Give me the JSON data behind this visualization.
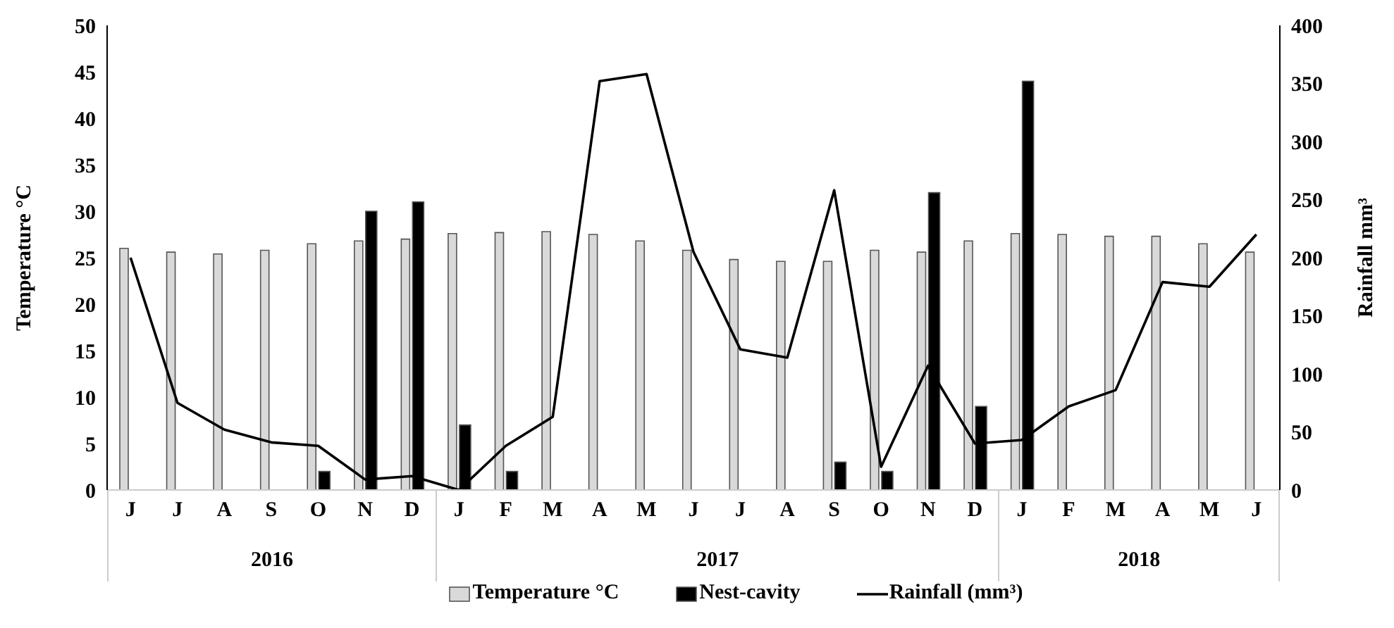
{
  "chart_data": {
    "type": "bar",
    "categories": [
      "J",
      "J",
      "A",
      "S",
      "O",
      "N",
      "D",
      "J",
      "F",
      "M",
      "A",
      "M",
      "J",
      "J",
      "A",
      "S",
      "O",
      "N",
      "D",
      "J",
      "F",
      "M",
      "A",
      "M",
      "J"
    ],
    "ylabel": "Temperature °C",
    "y2label": "Rainfall mm³",
    "ylim": [
      0,
      50
    ],
    "yticks": [
      0,
      5,
      10,
      15,
      20,
      25,
      30,
      35,
      40,
      45,
      50
    ],
    "y2lim": [
      0,
      400
    ],
    "y2ticks": [
      0,
      50,
      100,
      150,
      200,
      250,
      300,
      350,
      400
    ],
    "annotations": [
      "2016",
      "2017",
      "2018"
    ],
    "series": [
      {
        "name": "Temperature  °C",
        "color": "#d9d9d9",
        "values": [
          26,
          25.6,
          25.4,
          25.8,
          26.5,
          26.8,
          27,
          27.6,
          27.7,
          27.8,
          27.5,
          26.8,
          25.8,
          24.8,
          24.6,
          24.6,
          25.8,
          25.6,
          26.8,
          27.6,
          27.5,
          27.3,
          27.3,
          26.5,
          25.6
        ]
      },
      {
        "name": "Nest-cavity",
        "color": "#000000",
        "values": [
          null,
          null,
          null,
          null,
          2,
          30,
          31,
          7,
          2,
          null,
          null,
          null,
          null,
          null,
          null,
          3,
          2,
          32,
          9,
          44,
          null,
          null,
          null,
          null,
          null
        ]
      },
      {
        "name": "Rainfall (mm³)",
        "type": "line",
        "axis": "y2",
        "color": "#000000",
        "values": [
          200,
          75,
          52,
          41,
          38,
          9,
          12,
          0,
          38,
          63,
          352,
          358,
          205,
          121,
          114,
          258,
          20,
          107,
          40,
          43,
          72,
          86,
          179,
          175,
          220
        ]
      }
    ],
    "grid": false,
    "legend": "bottom",
    "marker": "none",
    "line_style": "solid"
  }
}
